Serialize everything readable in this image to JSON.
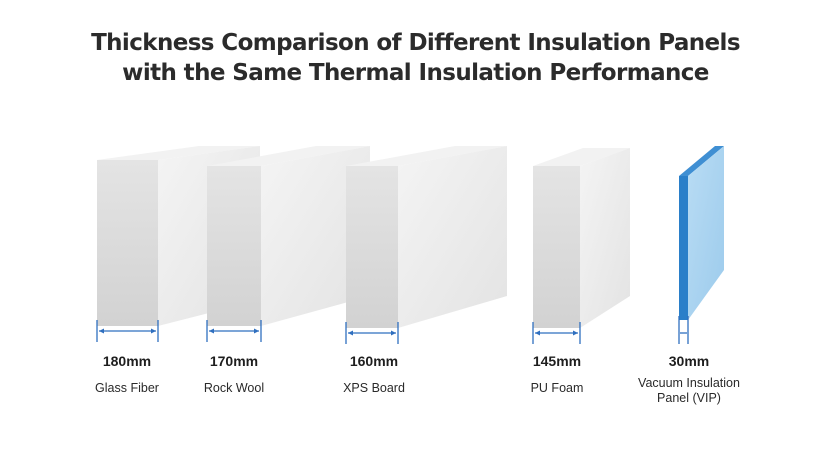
{
  "title_line1": "Thickness Comparison of Different Insulation Panels",
  "title_line2": "with the Same Thermal Insulation Performance",
  "colors": {
    "panel_front": "#d9d9d9",
    "panel_side": "#ececec",
    "panel_top": "#f3f3f3",
    "vip_front": "#2a7fc9",
    "vip_side": "#a9d1ef",
    "vip_top": "#4b96d6",
    "dimension_line": "#2f6fbf"
  },
  "panels": [
    {
      "id": "glass-fiber",
      "thickness": "180mm",
      "name": "Glass Fiber",
      "icon": "gray-panel"
    },
    {
      "id": "rock-wool",
      "thickness": "170mm",
      "name": "Rock Wool",
      "icon": "gray-panel"
    },
    {
      "id": "xps-board",
      "thickness": "160mm",
      "name": "XPS Board",
      "icon": "gray-panel"
    },
    {
      "id": "pu-foam",
      "thickness": "145mm",
      "name": "PU Foam",
      "icon": "gray-panel"
    },
    {
      "id": "vip",
      "thickness": "30mm",
      "name_line1": "Vacuum Insulation",
      "name_line2": "Panel (VIP)",
      "icon": "blue-thin-panel"
    }
  ]
}
